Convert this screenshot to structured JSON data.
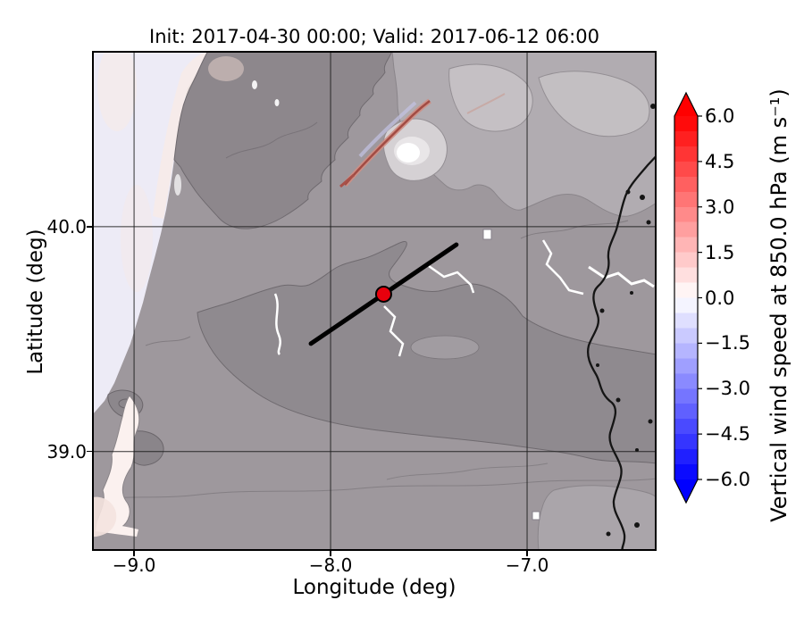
{
  "chart_data": {
    "type": "heatmap",
    "title": "Init: 2017-04-30 00:00; Valid: 2017-06-12 06:00",
    "xlabel": "Longitude (deg)",
    "ylabel": "Latitude (deg)",
    "x_ticks": [
      {
        "value": -9.0,
        "label": "−9.0"
      },
      {
        "value": -8.0,
        "label": "−8.0"
      },
      {
        "value": -7.0,
        "label": "−7.0"
      }
    ],
    "y_ticks": [
      {
        "value": 40.0,
        "label": "40.0"
      },
      {
        "value": 39.0,
        "label": "39.0"
      }
    ],
    "lon_range": [
      -9.214,
      -6.341
    ],
    "lat_range": [
      38.558,
      40.782
    ],
    "grid": true,
    "colorbar": {
      "label": "Vertical wind speed at 850.0 hPa (m s⁻¹)",
      "vmin": -6.0,
      "vmax": 6.0,
      "band_step": 0.5,
      "extend": "both",
      "legend_position": "right",
      "ticks": [
        {
          "value": 6.0,
          "label": "6.0"
        },
        {
          "value": 4.5,
          "label": "4.5"
        },
        {
          "value": 3.0,
          "label": "3.0"
        },
        {
          "value": 1.5,
          "label": "1.5"
        },
        {
          "value": 0.0,
          "label": "0.0"
        },
        {
          "value": -1.5,
          "label": "−1.5"
        },
        {
          "value": -3.0,
          "label": "−3.0"
        },
        {
          "value": -4.5,
          "label": "−4.5"
        },
        {
          "value": -6.0,
          "label": "−6.0"
        }
      ],
      "colormap": {
        "name": "blue-white-red",
        "low": "#0000ff",
        "mid": "#ffffff",
        "high": "#ff0000"
      }
    },
    "overlays": {
      "cross_section_line": {
        "color": "#000000",
        "width": 5,
        "from": {
          "lon": -8.1,
          "lat": 39.48
        },
        "to": {
          "lon": -7.36,
          "lat": 39.92
        }
      },
      "point_marker": {
        "lon": -7.73,
        "lat": 39.7,
        "radius": 8.5,
        "color": "#e8000d",
        "edge_color": "#000000"
      }
    }
  }
}
